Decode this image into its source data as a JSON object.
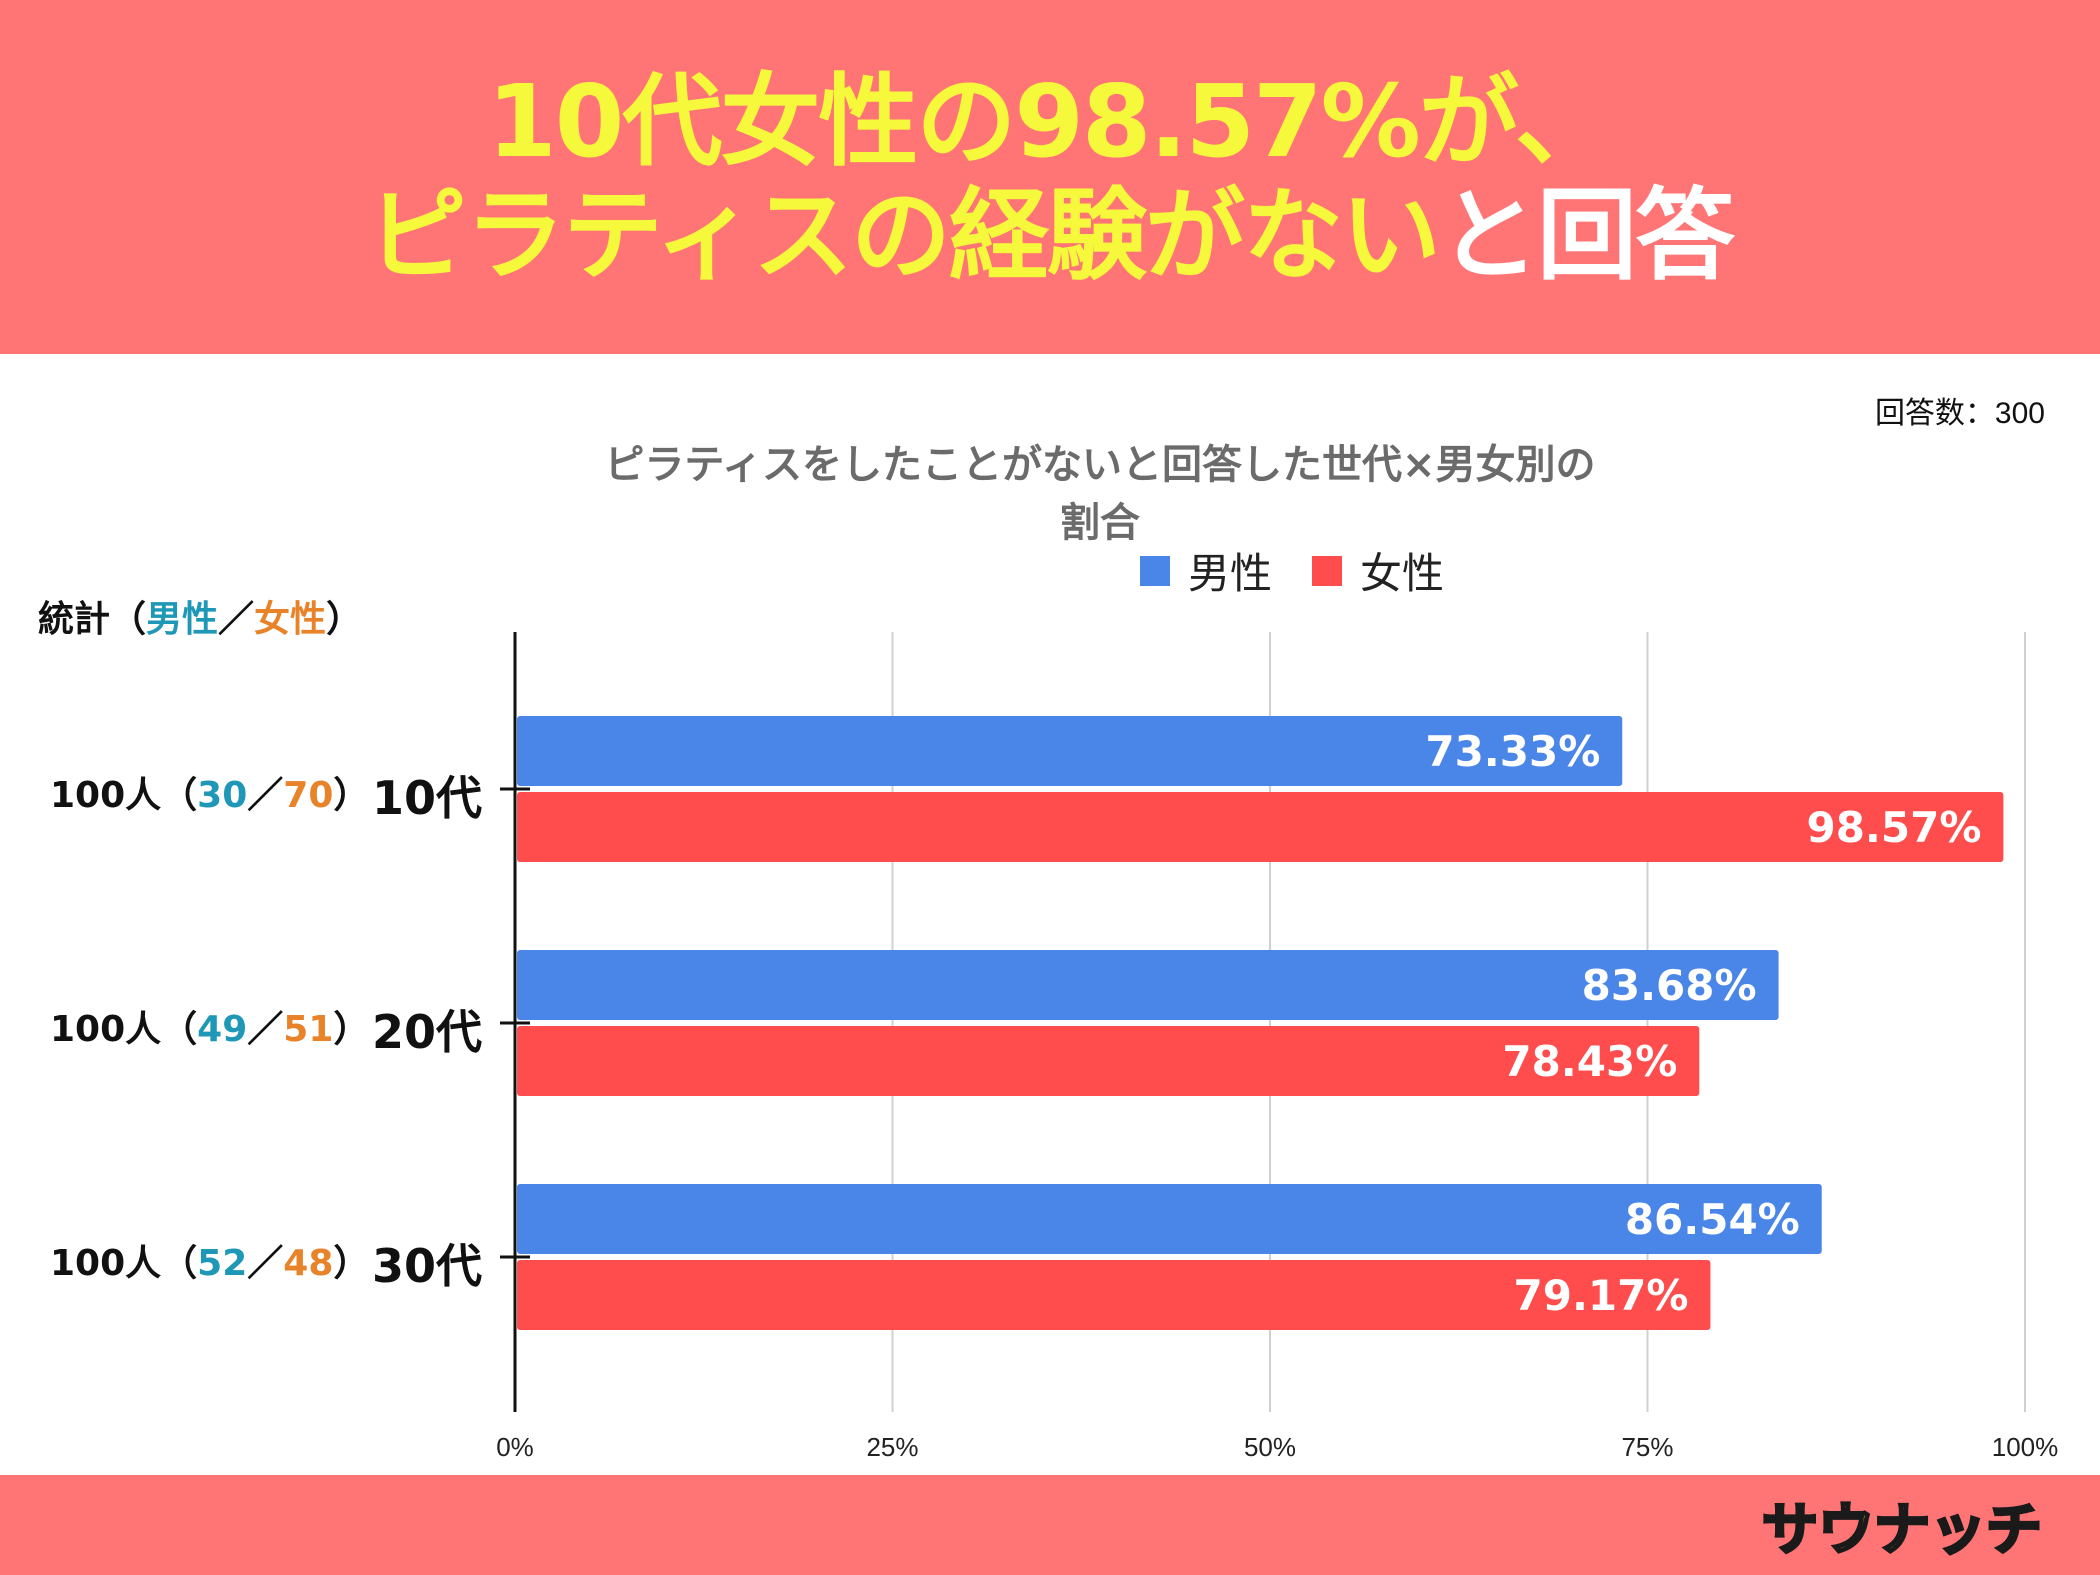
{
  "headline": {
    "line1": "10代女性の98.57%が、",
    "line2_yellow": "ピラティスの経験がない",
    "line2_white": "と回答"
  },
  "response_count": "回答数：300",
  "stats": {
    "header_prefix": "統計（",
    "header_male": "男性",
    "header_sep": "／",
    "header_female": "女性",
    "header_suffix": "）",
    "rows": [
      {
        "total": "100人（",
        "male": "30",
        "sep": "／",
        "female": "70",
        "close": "）"
      },
      {
        "total": "100人（",
        "male": "49",
        "sep": "／",
        "female": "51",
        "close": "）"
      },
      {
        "total": "100人（",
        "male": "52",
        "sep": "／",
        "female": "48",
        "close": "）"
      }
    ]
  },
  "logo_text": "サウナッチ",
  "colors": {
    "banner": "#ff7575",
    "headline_yellow": "#f6f83c",
    "male_bar": "#4a86e8",
    "female_bar": "#ff4d4d"
  },
  "chart_data": {
    "type": "bar",
    "orientation": "horizontal",
    "title": "ピラティスをしたことがないと回答した世代×男女別の割合",
    "categories": [
      "10代",
      "20代",
      "30代"
    ],
    "series": [
      {
        "name": "男性",
        "values": [
          73.33,
          83.68,
          86.54
        ],
        "labels": [
          "73.33%",
          "83.68%",
          "86.54%"
        ]
      },
      {
        "name": "女性",
        "values": [
          98.57,
          78.43,
          79.17
        ],
        "labels": [
          "98.57%",
          "78.43%",
          "79.17%"
        ]
      }
    ],
    "xlim": [
      0,
      100
    ],
    "xticks": [
      0,
      25,
      50,
      75,
      100
    ],
    "xtick_labels": [
      "0%",
      "25%",
      "50%",
      "75%",
      "100%"
    ],
    "legend_position": "top-center",
    "grid": true
  }
}
